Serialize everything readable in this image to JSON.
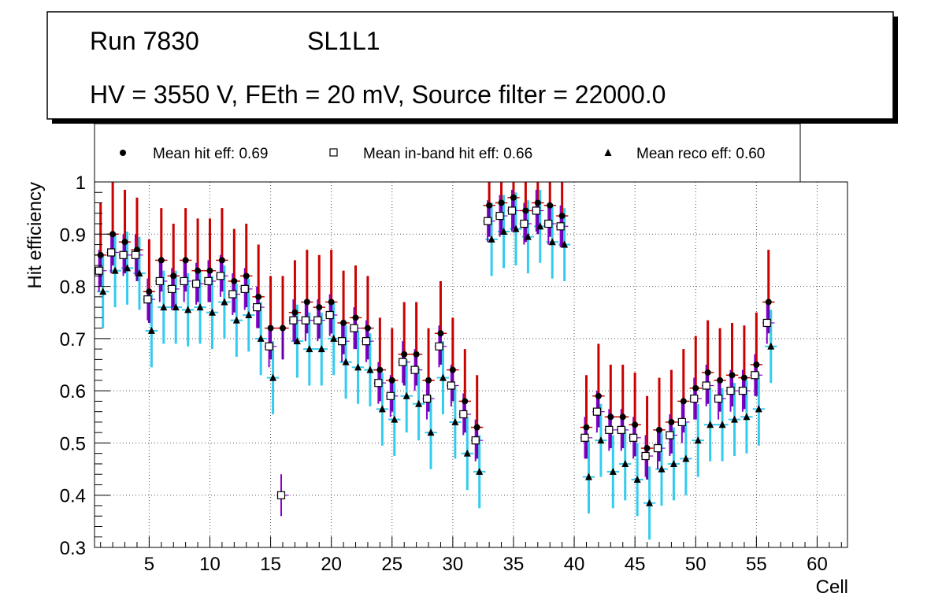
{
  "header": {
    "run_label": "Run 7830",
    "layer": "SL1L1",
    "settings": "HV = 3550 V, FEth = 20 mV, Source filter = 22000.0"
  },
  "legend": {
    "hit": "Mean hit  eff: 0.69",
    "inband": "Mean in-band hit eff: 0.66",
    "reco": "Mean reco eff: 0.60"
  },
  "colors": {
    "hit_err_upper": "#cc0000",
    "hit_err_lower": "#6600aa",
    "inband_err": "#8800cc",
    "reco_err": "#33ccee",
    "grid": "#555555"
  },
  "chart_data": {
    "type": "scatter",
    "xlabel": "Cell",
    "ylabel": "Hit efficiency",
    "xlim": [
      0.5,
      62.5
    ],
    "ylim": [
      0.3,
      1.0
    ],
    "xticks": [
      5,
      10,
      15,
      20,
      25,
      30,
      35,
      40,
      45,
      50,
      55,
      60
    ],
    "yticks": [
      0.3,
      0.4,
      0.5,
      0.6,
      0.7,
      0.8,
      0.9,
      1.0
    ],
    "xtick_labels": [
      "5",
      "10",
      "15",
      "20",
      "25",
      "30",
      "35",
      "40",
      "45",
      "50",
      "55",
      "60"
    ],
    "ytick_labels": [
      "0.3",
      "0.4",
      "0.5",
      "0.6",
      "0.7",
      "0.8",
      "0.9",
      "1"
    ],
    "grid": true,
    "series": [
      {
        "name": "Mean hit eff",
        "marker": "circle",
        "x": [
          1,
          2,
          3,
          4,
          5,
          6,
          7,
          8,
          9,
          10,
          11,
          12,
          13,
          14,
          15,
          16,
          17,
          18,
          19,
          20,
          21,
          22,
          23,
          24,
          25,
          26,
          27,
          28,
          29,
          30,
          31,
          32,
          33,
          34,
          35,
          36,
          37,
          38,
          39,
          41,
          42,
          43,
          44,
          45,
          46,
          47,
          48,
          49,
          50,
          51,
          52,
          53,
          54,
          55,
          56
        ],
        "y": [
          0.86,
          0.9,
          0.885,
          0.87,
          0.79,
          0.85,
          0.82,
          0.85,
          0.83,
          0.83,
          0.85,
          0.81,
          0.82,
          0.78,
          0.72,
          0.72,
          0.75,
          0.77,
          0.76,
          0.77,
          0.73,
          0.74,
          0.72,
          0.64,
          0.62,
          0.67,
          0.67,
          0.62,
          0.71,
          0.64,
          0.58,
          0.53,
          0.955,
          0.96,
          0.97,
          0.945,
          0.96,
          0.955,
          0.935,
          0.53,
          0.59,
          0.55,
          0.55,
          0.535,
          0.49,
          0.525,
          0.54,
          0.58,
          0.605,
          0.635,
          0.62,
          0.63,
          0.625,
          0.65,
          0.77
        ],
        "err_up": 0.1,
        "err_down": 0.06
      },
      {
        "name": "Mean in-band hit eff",
        "marker": "open-square",
        "x": [
          1,
          2,
          3,
          4,
          5,
          6,
          7,
          8,
          9,
          10,
          11,
          12,
          13,
          14,
          15,
          16,
          17,
          18,
          19,
          20,
          21,
          22,
          23,
          24,
          25,
          26,
          27,
          28,
          29,
          30,
          31,
          32,
          33,
          34,
          35,
          36,
          37,
          38,
          39,
          41,
          42,
          43,
          44,
          45,
          46,
          47,
          48,
          49,
          50,
          51,
          52,
          53,
          54,
          55,
          56
        ],
        "y": [
          0.83,
          0.865,
          0.86,
          0.86,
          0.775,
          0.81,
          0.795,
          0.81,
          0.805,
          0.81,
          0.82,
          0.785,
          0.795,
          0.76,
          0.685,
          0.4,
          0.735,
          0.735,
          0.735,
          0.745,
          0.695,
          0.72,
          0.695,
          0.615,
          0.59,
          0.655,
          0.64,
          0.585,
          0.685,
          0.61,
          0.555,
          0.505,
          0.925,
          0.935,
          0.945,
          0.92,
          0.945,
          0.92,
          0.915,
          0.51,
          0.56,
          0.525,
          0.525,
          0.51,
          0.475,
          0.49,
          0.515,
          0.54,
          0.585,
          0.61,
          0.585,
          0.6,
          0.6,
          0.63,
          0.73
        ],
        "err": 0.04
      },
      {
        "name": "Mean reco eff",
        "marker": "triangle",
        "x": [
          1,
          2,
          3,
          4,
          5,
          6,
          7,
          8,
          9,
          10,
          11,
          12,
          13,
          14,
          15,
          17,
          18,
          19,
          20,
          21,
          22,
          23,
          24,
          25,
          26,
          27,
          28,
          29,
          30,
          31,
          32,
          33,
          34,
          35,
          36,
          37,
          38,
          39,
          41,
          42,
          43,
          44,
          45,
          46,
          47,
          48,
          49,
          50,
          51,
          52,
          53,
          54,
          55,
          56
        ],
        "y": [
          0.79,
          0.83,
          0.835,
          0.825,
          0.715,
          0.76,
          0.76,
          0.755,
          0.76,
          0.75,
          0.77,
          0.735,
          0.745,
          0.7,
          0.625,
          0.695,
          0.68,
          0.68,
          0.7,
          0.655,
          0.645,
          0.64,
          0.565,
          0.545,
          0.59,
          0.575,
          0.52,
          0.625,
          0.54,
          0.48,
          0.445,
          0.89,
          0.905,
          0.91,
          0.895,
          0.915,
          0.885,
          0.88,
          0.435,
          0.505,
          0.445,
          0.46,
          0.43,
          0.385,
          0.45,
          0.46,
          0.47,
          0.505,
          0.535,
          0.535,
          0.545,
          0.55,
          0.565,
          0.685
        ],
        "err": 0.07
      }
    ]
  }
}
